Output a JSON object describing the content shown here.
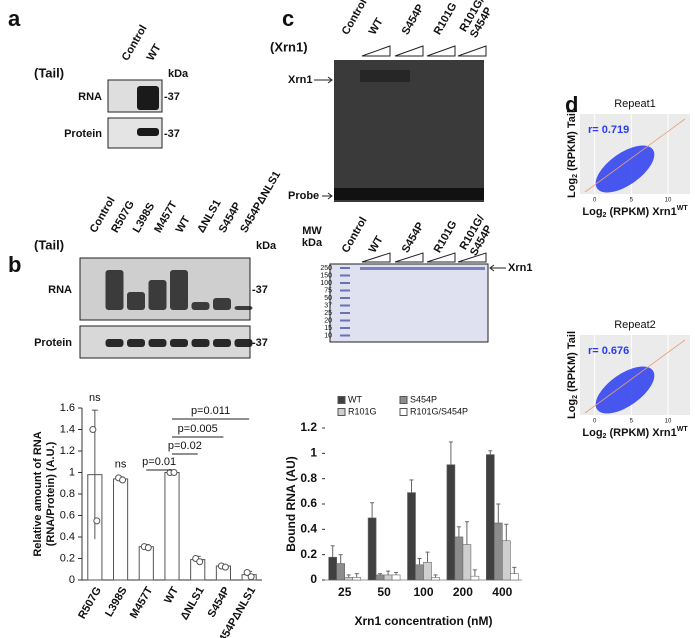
{
  "panel_a": {
    "label": "a",
    "condition": "(Tail)",
    "lanes": [
      "Control",
      "WT"
    ],
    "unit": "kDa",
    "rows": [
      "RNA",
      "Protein"
    ],
    "markers": [
      "-37",
      "-37"
    ]
  },
  "panel_b": {
    "label": "b",
    "condition": "(Tail)",
    "lanes": [
      "Control",
      "R507G",
      "L398S",
      "M457T",
      "WT",
      "ΔNLS1",
      "S454P",
      "S454PΔNLS1"
    ],
    "unit": "kDa",
    "rows": [
      "RNA",
      "Protein"
    ],
    "markers": [
      "-37",
      "-37"
    ]
  },
  "panel_c": {
    "label": "c",
    "condition": "(Xrn1)",
    "lanes": [
      "Control",
      "WT",
      "S454P",
      "R101G",
      [
        "R101G/",
        "S454P"
      ]
    ],
    "band_labels": [
      "Xrn1",
      "Probe"
    ],
    "gel2": {
      "lanes": [
        "Control",
        "WT",
        "S454P",
        "R101G",
        [
          "R101G/",
          "S454P"
        ]
      ],
      "mw_label": "MW",
      "unit": "kDa",
      "markers": [
        "250",
        "150",
        "100",
        "75",
        "50",
        "37",
        "25",
        "20",
        "15",
        "10"
      ],
      "band_label": "Xrn1"
    }
  },
  "panel_d": {
    "label": "d"
  },
  "chart_data": [
    {
      "type": "bar",
      "ylabel": [
        "Relative amount of RNA",
        "(RNA/Protein) (A.U.)"
      ],
      "categories": [
        "R507G",
        "L398S",
        "M457T",
        "WT",
        "ΔNLS1",
        "S454P",
        "S454PΔNLS1"
      ],
      "values": [
        0.98,
        0.94,
        0.31,
        1.0,
        0.19,
        0.13,
        0.05
      ],
      "errors": [
        0.6,
        0.02,
        0.02,
        0.01,
        0.03,
        0.01,
        0.03
      ],
      "points": [
        [
          1.4,
          0.55
        ],
        [
          0.95,
          0.93
        ],
        [
          0.31,
          0.3
        ],
        [
          1.0,
          1.0
        ],
        [
          0.2,
          0.17
        ],
        [
          0.13,
          0.12
        ],
        [
          0.07,
          0.03
        ]
      ],
      "color": "#ffffff",
      "ylim": [
        0,
        1.6
      ],
      "yticks": [
        0,
        0.2,
        0.4,
        0.6,
        0.8,
        1,
        1.2,
        1.4,
        1.6
      ],
      "annotations": [
        "ns",
        "ns",
        "p=0.01",
        "p=0.02",
        "p=0.005",
        "p=0.011"
      ]
    },
    {
      "type": "grouped_bar",
      "ylabel": "Bound RNA (AU)",
      "xlabel": "Xrn1 concentration (nM)",
      "categories": [
        "25",
        "50",
        "100",
        "200",
        "400"
      ],
      "series": [
        {
          "name": "WT",
          "color": "#404040",
          "values": [
            0.18,
            0.49,
            0.69,
            0.91,
            0.99
          ],
          "errors": [
            0.09,
            0.12,
            0.1,
            0.18,
            0.03
          ]
        },
        {
          "name": "S454P",
          "color": "#8c8c8c",
          "values": [
            0.13,
            0.04,
            0.12,
            0.34,
            0.45
          ],
          "errors": [
            0.07,
            0.01,
            0.05,
            0.08,
            0.15
          ]
        },
        {
          "name": "R101G",
          "color": "#cfcfcf",
          "values": [
            0.02,
            0.04,
            0.14,
            0.28,
            0.31
          ],
          "errors": [
            0.02,
            0.03,
            0.08,
            0.18,
            0.13
          ]
        },
        {
          "name": "R101G/S454P",
          "color": "#ffffff",
          "values": [
            0.02,
            0.04,
            0.02,
            0.03,
            0.05
          ],
          "errors": [
            0.03,
            0.02,
            0.02,
            0.05,
            0.05
          ]
        }
      ],
      "ylim": [
        0,
        1.2
      ],
      "yticks": [
        0,
        0.2,
        0.4,
        0.6,
        0.8,
        1,
        1.2
      ]
    },
    {
      "type": "scatter",
      "title": "Repeat1",
      "annotation": "r= 0.719",
      "xlabel": [
        "Log",
        "2",
        " (RPKM) Xrn1",
        "WT"
      ],
      "ylabel": [
        "Log",
        "2",
        " (RPKM) Tail"
      ],
      "xlim": [
        -2,
        13
      ],
      "xticks": [
        0,
        5,
        10
      ]
    },
    {
      "type": "scatter",
      "title": "Repeat2",
      "annotation": "r= 0.676",
      "xlabel": [
        "Log",
        "2",
        " (RPKM) Xrn1",
        "WT"
      ],
      "ylabel": [
        "Log",
        "2",
        " (RPKM) Tail"
      ],
      "xlim": [
        -2,
        13
      ],
      "xticks": [
        0,
        5,
        10
      ]
    }
  ]
}
